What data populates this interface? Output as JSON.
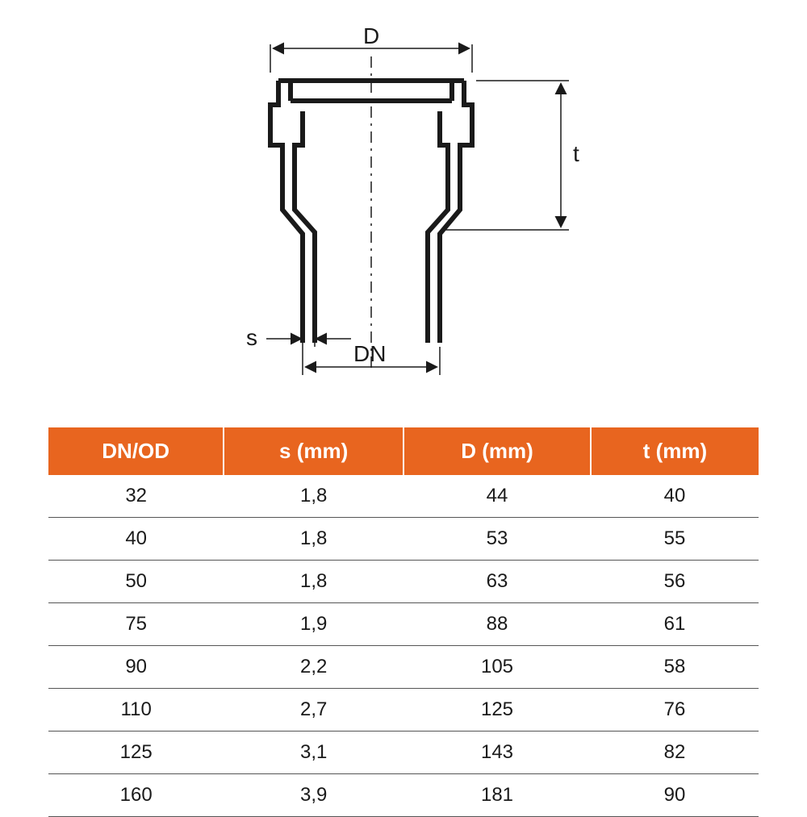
{
  "diagram": {
    "labels": {
      "D": "D",
      "t": "t",
      "s": "s",
      "DN": "DN"
    },
    "stroke_color": "#1a1a1a",
    "stroke_width_heavy": 6,
    "stroke_width_thin": 1.5,
    "dash_pattern": "12 8 3 8"
  },
  "table": {
    "header_bg": "#e8651f",
    "header_fg": "#ffffff",
    "row_border_color": "#555555",
    "cell_color": "#1a1a1a",
    "header_fontsize": 26,
    "cell_fontsize": 24,
    "columns": [
      "DN/OD",
      "s (mm)",
      "D (mm)",
      "t (mm)"
    ],
    "rows": [
      [
        "32",
        "1,8",
        "44",
        "40"
      ],
      [
        "40",
        "1,8",
        "53",
        "55"
      ],
      [
        "50",
        "1,8",
        "63",
        "56"
      ],
      [
        "75",
        "1,9",
        "88",
        "61"
      ],
      [
        "90",
        "2,2",
        "105",
        "58"
      ],
      [
        "110",
        "2,7",
        "125",
        "76"
      ],
      [
        "125",
        "3,1",
        "143",
        "82"
      ],
      [
        "160",
        "3,9",
        "181",
        "90"
      ]
    ]
  }
}
